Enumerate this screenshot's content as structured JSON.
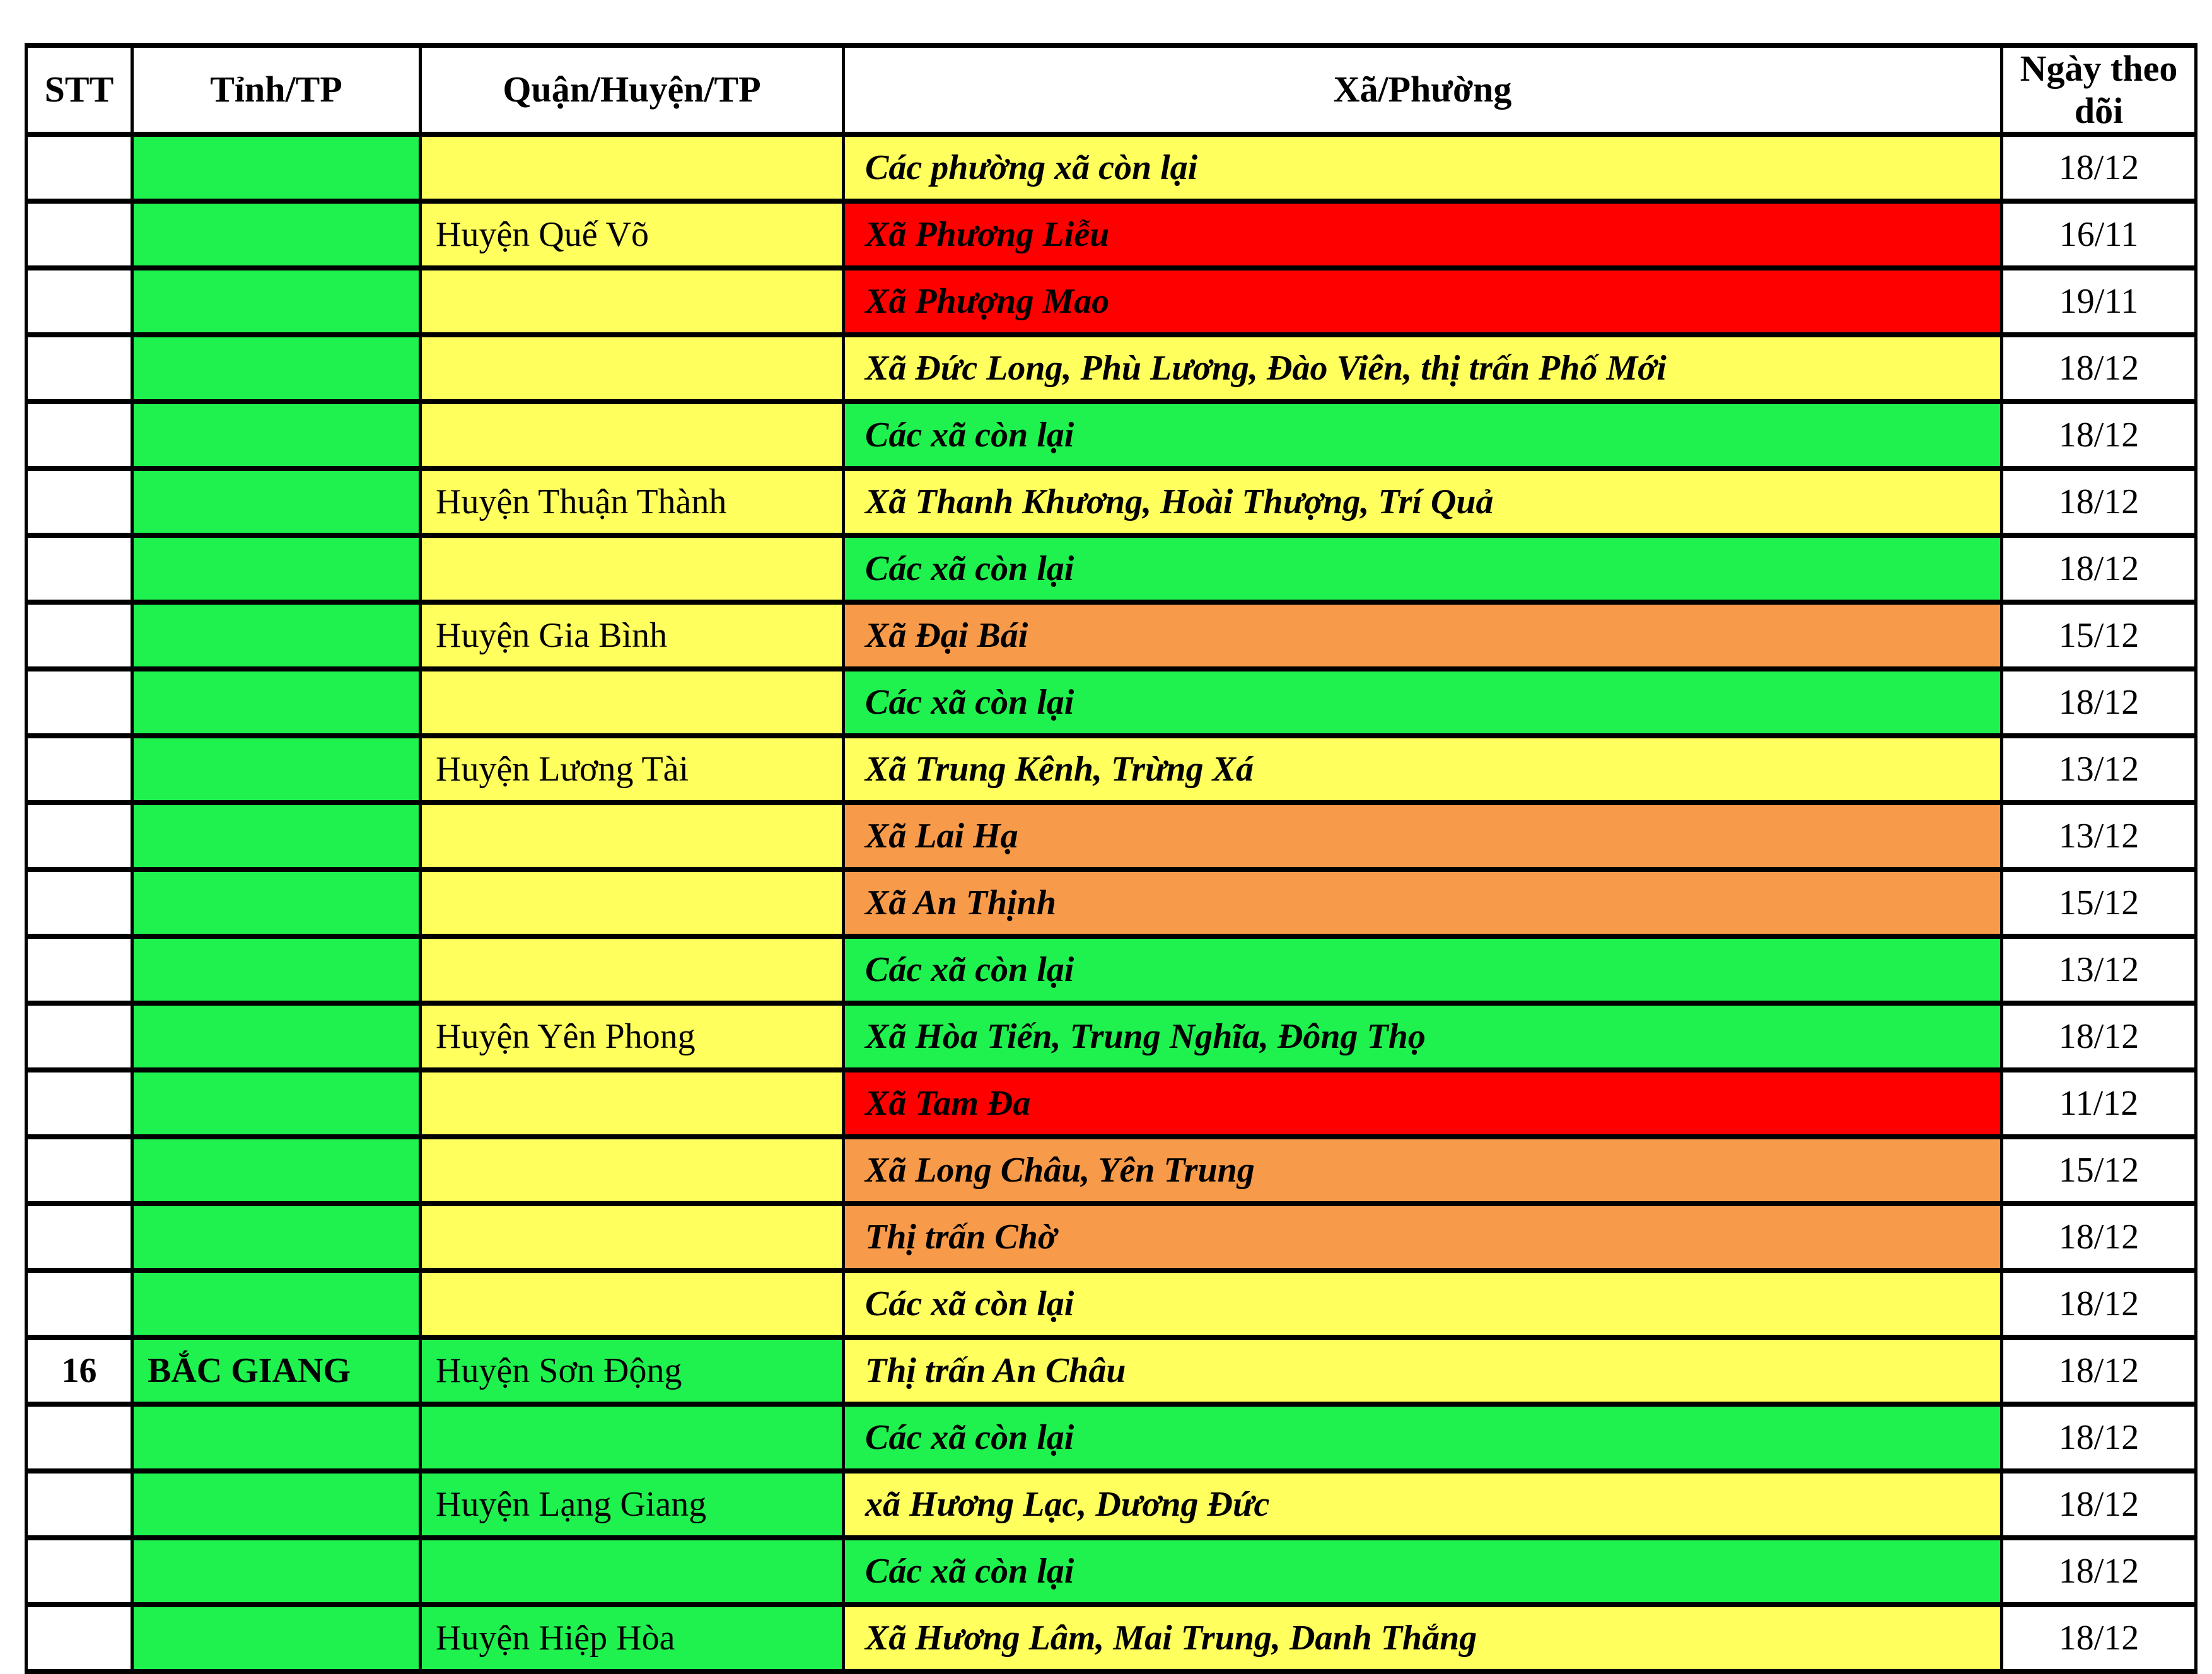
{
  "palette": {
    "yellow": "#FFFF5D",
    "green": "#1FF24E",
    "orange": "#F79A4A",
    "red": "#FF0000",
    "white": "#FFFFFF",
    "border": "#000000",
    "text": "#000000"
  },
  "table": {
    "columns": [
      "STT",
      "Tỉnh/TP",
      "Quận/Huyện/TP",
      "Xã/Phường",
      "Ngày theo dõi"
    ],
    "rows": [
      {
        "stt": "",
        "stt_color": "white",
        "tinh": "",
        "tinh_color": "green",
        "quan": "",
        "quan_color": "yellow",
        "xa": "Các phường xã còn lại",
        "xa_color": "yellow",
        "date": "18/12",
        "date_color": "white"
      },
      {
        "stt": "",
        "stt_color": "white",
        "tinh": "",
        "tinh_color": "green",
        "quan": "Huyện Quế Võ",
        "quan_color": "yellow",
        "xa": "Xã Phương Liễu",
        "xa_color": "red",
        "date": "16/11",
        "date_color": "white"
      },
      {
        "stt": "",
        "stt_color": "white",
        "tinh": "",
        "tinh_color": "green",
        "quan": "",
        "quan_color": "yellow",
        "xa": "Xã Phượng Mao",
        "xa_color": "red",
        "date": "19/11",
        "date_color": "white"
      },
      {
        "stt": "",
        "stt_color": "white",
        "tinh": "",
        "tinh_color": "green",
        "quan": "",
        "quan_color": "yellow",
        "xa": "Xã Đức Long, Phù Lương, Đào Viên, thị trấn Phố Mới",
        "xa_color": "yellow",
        "date": "18/12",
        "date_color": "white"
      },
      {
        "stt": "",
        "stt_color": "white",
        "tinh": "",
        "tinh_color": "green",
        "quan": "",
        "quan_color": "yellow",
        "xa": "Các xã còn lại",
        "xa_color": "green",
        "date": "18/12",
        "date_color": "white"
      },
      {
        "stt": "",
        "stt_color": "white",
        "tinh": "",
        "tinh_color": "green",
        "quan": "Huyện Thuận Thành",
        "quan_color": "yellow",
        "xa": "Xã Thanh Khương, Hoài Thượng, Trí Quả",
        "xa_color": "yellow",
        "date": "18/12",
        "date_color": "white"
      },
      {
        "stt": "",
        "stt_color": "white",
        "tinh": "",
        "tinh_color": "green",
        "quan": "",
        "quan_color": "yellow",
        "xa": "Các xã còn lại",
        "xa_color": "green",
        "date": "18/12",
        "date_color": "white"
      },
      {
        "stt": "",
        "stt_color": "white",
        "tinh": "",
        "tinh_color": "green",
        "quan": "Huyện Gia Bình",
        "quan_color": "yellow",
        "xa": "Xã Đại Bái",
        "xa_color": "orange",
        "date": "15/12",
        "date_color": "white"
      },
      {
        "stt": "",
        "stt_color": "white",
        "tinh": "",
        "tinh_color": "green",
        "quan": "",
        "quan_color": "yellow",
        "xa": "Các xã còn lại",
        "xa_color": "green",
        "date": "18/12",
        "date_color": "white"
      },
      {
        "stt": "",
        "stt_color": "white",
        "tinh": "",
        "tinh_color": "green",
        "quan": "Huyện Lương Tài",
        "quan_color": "yellow",
        "xa": "Xã Trung Kênh, Trừng Xá",
        "xa_color": "yellow",
        "date": "13/12",
        "date_color": "white"
      },
      {
        "stt": "",
        "stt_color": "white",
        "tinh": "",
        "tinh_color": "green",
        "quan": "",
        "quan_color": "yellow",
        "xa": "Xã Lai Hạ",
        "xa_color": "orange",
        "date": "13/12",
        "date_color": "white"
      },
      {
        "stt": "",
        "stt_color": "white",
        "tinh": "",
        "tinh_color": "green",
        "quan": "",
        "quan_color": "yellow",
        "xa": "Xã An Thịnh",
        "xa_color": "orange",
        "date": "15/12",
        "date_color": "white"
      },
      {
        "stt": "",
        "stt_color": "white",
        "tinh": "",
        "tinh_color": "green",
        "quan": "",
        "quan_color": "yellow",
        "xa": "Các xã còn lại",
        "xa_color": "green",
        "date": "13/12",
        "date_color": "white"
      },
      {
        "stt": "",
        "stt_color": "white",
        "tinh": "",
        "tinh_color": "green",
        "quan": "Huyện Yên Phong",
        "quan_color": "yellow",
        "xa": "Xã Hòa Tiến, Trung Nghĩa, Đông Thọ",
        "xa_color": "green",
        "date": "18/12",
        "date_color": "white"
      },
      {
        "stt": "",
        "stt_color": "white",
        "tinh": "",
        "tinh_color": "green",
        "quan": "",
        "quan_color": "yellow",
        "xa": "Xã Tam Đa",
        "xa_color": "red",
        "date": "11/12",
        "date_color": "white"
      },
      {
        "stt": "",
        "stt_color": "white",
        "tinh": "",
        "tinh_color": "green",
        "quan": "",
        "quan_color": "yellow",
        "xa": "Xã Long Châu, Yên Trung",
        "xa_color": "orange",
        "date": "15/12",
        "date_color": "white"
      },
      {
        "stt": "",
        "stt_color": "white",
        "tinh": "",
        "tinh_color": "green",
        "quan": "",
        "quan_color": "yellow",
        "xa": "Thị trấn Chờ",
        "xa_color": "orange",
        "date": "18/12",
        "date_color": "white"
      },
      {
        "stt": "",
        "stt_color": "white",
        "tinh": "",
        "tinh_color": "green",
        "quan": "",
        "quan_color": "yellow",
        "xa": "Các xã còn lại",
        "xa_color": "yellow",
        "date": "18/12",
        "date_color": "white"
      },
      {
        "stt": "16",
        "stt_color": "white",
        "tinh": "BẮC GIANG",
        "tinh_color": "green",
        "quan": "Huyện Sơn Động",
        "quan_color": "green",
        "xa": "Thị trấn An Châu",
        "xa_color": "yellow",
        "date": "18/12",
        "date_color": "white"
      },
      {
        "stt": "",
        "stt_color": "white",
        "tinh": "",
        "tinh_color": "green",
        "quan": "",
        "quan_color": "green",
        "xa": "Các xã còn lại",
        "xa_color": "green",
        "date": "18/12",
        "date_color": "white"
      },
      {
        "stt": "",
        "stt_color": "white",
        "tinh": "",
        "tinh_color": "green",
        "quan": "Huyện Lạng Giang",
        "quan_color": "green",
        "xa": "xã Hương Lạc, Dương Đức",
        "xa_color": "yellow",
        "date": "18/12",
        "date_color": "white"
      },
      {
        "stt": "",
        "stt_color": "white",
        "tinh": "",
        "tinh_color": "green",
        "quan": "",
        "quan_color": "green",
        "xa": "Các xã còn lại",
        "xa_color": "green",
        "date": "18/12",
        "date_color": "white"
      },
      {
        "stt": "",
        "stt_color": "white",
        "tinh": "",
        "tinh_color": "green",
        "quan": "Huyện Hiệp Hòa",
        "quan_color": "green",
        "xa": "Xã Hương Lâm, Mai Trung, Danh Thắng",
        "xa_color": "yellow",
        "date": "18/12",
        "date_color": "white"
      }
    ]
  }
}
